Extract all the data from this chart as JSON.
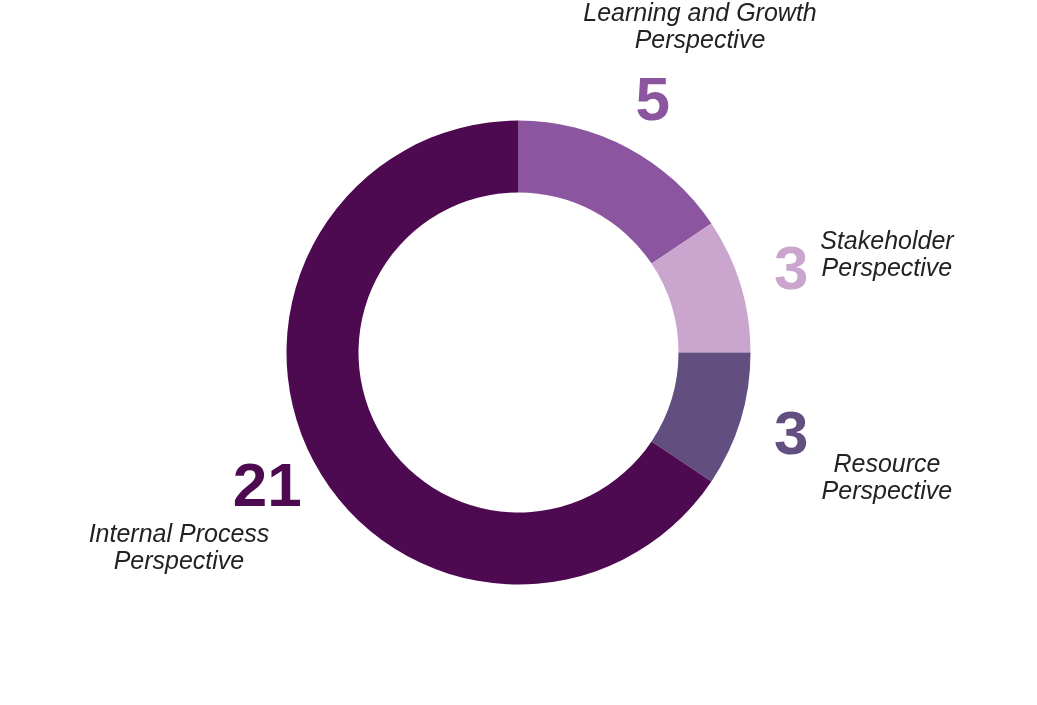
{
  "chart_data": {
    "type": "donut",
    "categories": [
      "Learning and Growth Perspective",
      "Stakeholder Perspective",
      "Resource Perspective",
      "Internal Process Perspective"
    ],
    "values": [
      5,
      3,
      3,
      21
    ],
    "colors": [
      "#8b55a0",
      "#caa6cf",
      "#634e80",
      "#4e0a50"
    ],
    "data_labels": true,
    "legend": false
  }
}
